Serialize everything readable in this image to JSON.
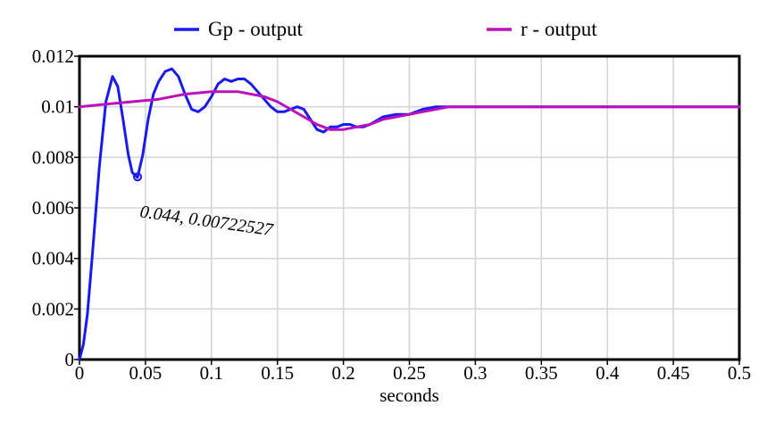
{
  "chart_data": {
    "type": "line",
    "title": "",
    "xlabel": "seconds",
    "ylabel": "",
    "xlim": [
      0,
      0.5
    ],
    "ylim": [
      0,
      0.012
    ],
    "xticks": [
      "0",
      "0.05",
      "0.1",
      "0.15",
      "0.2",
      "0.25",
      "0.3",
      "0.35",
      "0.4",
      "0.45",
      "0.5"
    ],
    "xtick_values": [
      0,
      0.05,
      0.1,
      0.15,
      0.2,
      0.25,
      0.3,
      0.35,
      0.4,
      0.45,
      0.5
    ],
    "yticks": [
      "0",
      "0.002",
      "0.004",
      "0.006",
      "0.008",
      "0.01",
      "0.012"
    ],
    "ytick_values": [
      0,
      0.002,
      0.004,
      0.006,
      0.008,
      0.01,
      0.012
    ],
    "grid": true,
    "legend_position": "top",
    "series": [
      {
        "name": "Gp - output",
        "color": "#1a1aee",
        "x": [
          0,
          0.003,
          0.006,
          0.01,
          0.015,
          0.02,
          0.025,
          0.029,
          0.033,
          0.037,
          0.04,
          0.044,
          0.048,
          0.052,
          0.056,
          0.06,
          0.065,
          0.07,
          0.075,
          0.08,
          0.085,
          0.09,
          0.095,
          0.1,
          0.105,
          0.11,
          0.115,
          0.12,
          0.125,
          0.13,
          0.135,
          0.14,
          0.145,
          0.15,
          0.155,
          0.16,
          0.165,
          0.17,
          0.175,
          0.18,
          0.185,
          0.19,
          0.195,
          0.2,
          0.205,
          0.21,
          0.215,
          0.22,
          0.23,
          0.24,
          0.25,
          0.26,
          0.27,
          0.28,
          0.29,
          0.3,
          0.32,
          0.35,
          0.4,
          0.45,
          0.5
        ],
        "values": [
          0,
          0.0006,
          0.0018,
          0.0043,
          0.0076,
          0.0102,
          0.0112,
          0.0108,
          0.0095,
          0.0081,
          0.0074,
          0.0072,
          0.0081,
          0.0095,
          0.0105,
          0.011,
          0.0114,
          0.0115,
          0.0112,
          0.0105,
          0.0099,
          0.0098,
          0.01,
          0.0104,
          0.0109,
          0.0111,
          0.011,
          0.0111,
          0.0111,
          0.0109,
          0.0106,
          0.0103,
          0.01,
          0.0098,
          0.0098,
          0.0099,
          0.01,
          0.0099,
          0.0095,
          0.0091,
          0.009,
          0.0092,
          0.0092,
          0.0093,
          0.0093,
          0.0092,
          0.0092,
          0.0093,
          0.0096,
          0.0097,
          0.0097,
          0.0099,
          0.01,
          0.01,
          0.01,
          0.01,
          0.01,
          0.01,
          0.01,
          0.01,
          0.01
        ]
      },
      {
        "name": "r - output",
        "color": "#bb10bb",
        "x": [
          0,
          0.02,
          0.04,
          0.06,
          0.08,
          0.1,
          0.11,
          0.12,
          0.13,
          0.14,
          0.15,
          0.16,
          0.17,
          0.18,
          0.19,
          0.2,
          0.21,
          0.22,
          0.23,
          0.24,
          0.25,
          0.26,
          0.27,
          0.28,
          0.3,
          0.35,
          0.4,
          0.45,
          0.5
        ],
        "values": [
          0.01,
          0.0101,
          0.0102,
          0.0103,
          0.0105,
          0.0106,
          0.0106,
          0.0106,
          0.0105,
          0.0104,
          0.0102,
          0.0099,
          0.0096,
          0.0093,
          0.0091,
          0.0091,
          0.0092,
          0.0093,
          0.0095,
          0.0096,
          0.0097,
          0.0098,
          0.0099,
          0.01,
          0.01,
          0.01,
          0.01,
          0.01,
          0.01
        ]
      }
    ],
    "annotations": [
      {
        "text": "0.044, 0.00722527",
        "x": 0.044,
        "y": 0.00722527
      }
    ]
  }
}
